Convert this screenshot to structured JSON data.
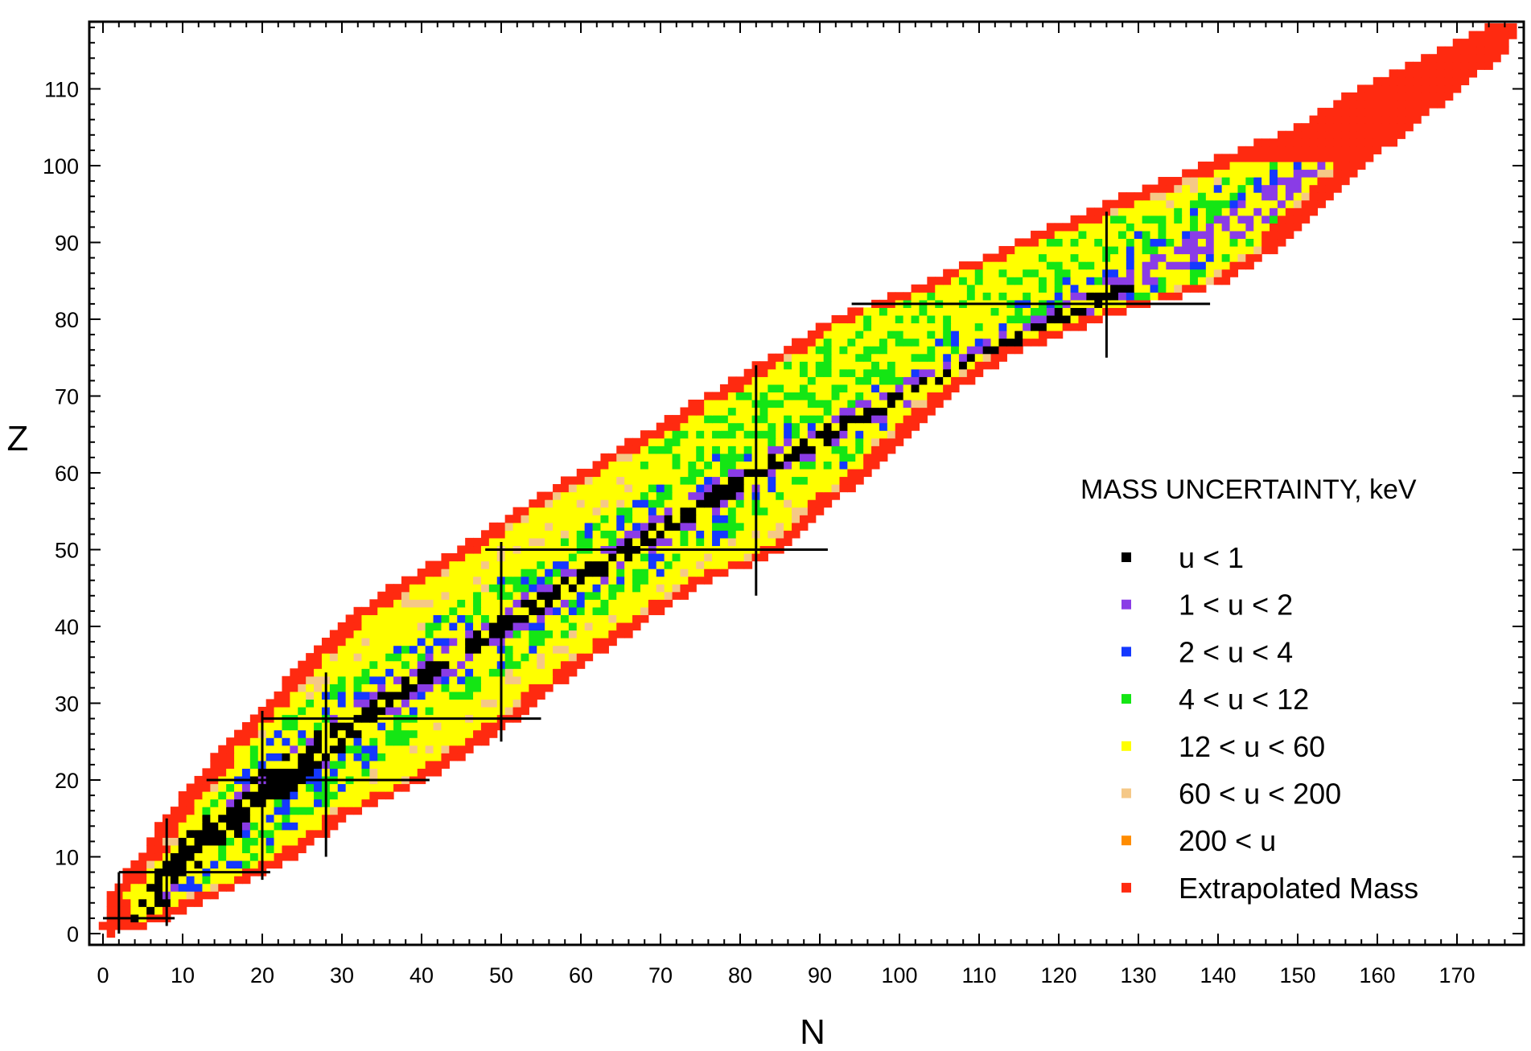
{
  "chart_data": {
    "type": "heatmap",
    "title": "",
    "xlabel": "N",
    "ylabel": "Z",
    "xlim": [
      -2,
      178
    ],
    "ylim": [
      -2,
      119
    ],
    "x_ticks": [
      0,
      10,
      20,
      30,
      40,
      50,
      60,
      70,
      80,
      90,
      100,
      110,
      120,
      130,
      140,
      150,
      160,
      170
    ],
    "y_ticks": [
      0,
      10,
      20,
      30,
      40,
      50,
      60,
      70,
      80,
      90,
      100,
      110
    ],
    "grid": false,
    "legend": {
      "title": "MASS UNCERTAINTY, keV",
      "placement": "right",
      "entries": [
        {
          "label": "u < 1",
          "color": "#000000"
        },
        {
          "label": "1 < u < 2",
          "color": "#8a3ce6"
        },
        {
          "label": "2 < u < 4",
          "color": "#1438ff"
        },
        {
          "label": "4 < u < 12",
          "color": "#14e614"
        },
        {
          "label": "12 < u < 60",
          "color": "#ffff00"
        },
        {
          "label": "60 < u < 200",
          "color": "#f5c887"
        },
        {
          "label": "200 < u",
          "color": "#ff8c00"
        },
        {
          "label": "Extrapolated Mass",
          "color": "#ff2a10"
        }
      ]
    },
    "magic_numbers": [
      2,
      8,
      20,
      28,
      50,
      82,
      126
    ],
    "magic_lines": [
      {
        "axis": "N",
        "value": 2,
        "range": [
          0,
          8
        ]
      },
      {
        "axis": "N",
        "value": 8,
        "range": [
          1,
          15
        ]
      },
      {
        "axis": "N",
        "value": 20,
        "range": [
          7,
          29
        ]
      },
      {
        "axis": "N",
        "value": 28,
        "range": [
          10,
          34
        ]
      },
      {
        "axis": "N",
        "value": 50,
        "range": [
          25,
          51
        ]
      },
      {
        "axis": "N",
        "value": 82,
        "range": [
          44,
          74
        ]
      },
      {
        "axis": "N",
        "value": 126,
        "range": [
          75,
          94
        ]
      },
      {
        "axis": "Z",
        "value": 2,
        "range": [
          0,
          9
        ]
      },
      {
        "axis": "Z",
        "value": 8,
        "range": [
          2,
          21
        ]
      },
      {
        "axis": "Z",
        "value": 20,
        "range": [
          13,
          41
        ]
      },
      {
        "axis": "Z",
        "value": 28,
        "range": [
          20,
          55
        ]
      },
      {
        "axis": "Z",
        "value": 50,
        "range": [
          48,
          91
        ]
      },
      {
        "axis": "Z",
        "value": 82,
        "range": [
          94,
          139
        ]
      }
    ],
    "nuclide_band": {
      "description": "Known and extrapolated nuclides; each cell colored by mass uncertainty class",
      "rows": [
        {
          "Z": 0,
          "N_min": 1,
          "N_max": 1
        },
        {
          "Z": 1,
          "N_min": 0,
          "N_max": 5
        },
        {
          "Z": 2,
          "N_min": 1,
          "N_max": 8
        },
        {
          "Z": 5,
          "N_min": 1,
          "N_max": 14
        },
        {
          "Z": 10,
          "N_min": 5,
          "N_max": 24
        },
        {
          "Z": 15,
          "N_min": 8,
          "N_max": 30
        },
        {
          "Z": 20,
          "N_min": 12,
          "N_max": 40
        },
        {
          "Z": 25,
          "N_min": 16,
          "N_max": 48
        },
        {
          "Z": 30,
          "N_min": 21,
          "N_max": 54
        },
        {
          "Z": 35,
          "N_min": 25,
          "N_max": 60
        },
        {
          "Z": 40,
          "N_min": 30,
          "N_max": 67
        },
        {
          "Z": 45,
          "N_min": 36,
          "N_max": 74
        },
        {
          "Z": 50,
          "N_min": 45,
          "N_max": 85
        },
        {
          "Z": 55,
          "N_min": 52,
          "N_max": 90
        },
        {
          "Z": 60,
          "N_min": 60,
          "N_max": 96
        },
        {
          "Z": 65,
          "N_min": 68,
          "N_max": 101
        },
        {
          "Z": 70,
          "N_min": 76,
          "N_max": 106
        },
        {
          "Z": 75,
          "N_min": 84,
          "N_max": 113
        },
        {
          "Z": 80,
          "N_min": 92,
          "N_max": 125
        },
        {
          "Z": 85,
          "N_min": 104,
          "N_max": 141
        },
        {
          "Z": 90,
          "N_min": 115,
          "N_max": 148
        },
        {
          "Z": 95,
          "N_min": 126,
          "N_max": 153
        },
        {
          "Z": 100,
          "N_min": 138,
          "N_max": 158
        },
        {
          "Z": 105,
          "N_min": 150,
          "N_max": 164
        },
        {
          "Z": 110,
          "N_min": 158,
          "N_max": 170
        },
        {
          "Z": 115,
          "N_min": 168,
          "N_max": 176
        },
        {
          "Z": 118,
          "N_min": 174,
          "N_max": 177
        }
      ],
      "valley_N_at_Z": [
        {
          "Z": 0,
          "N": 1
        },
        {
          "Z": 10,
          "N": 10
        },
        {
          "Z": 20,
          "N": 22
        },
        {
          "Z": 30,
          "N": 35
        },
        {
          "Z": 40,
          "N": 50
        },
        {
          "Z": 50,
          "N": 66
        },
        {
          "Z": 60,
          "N": 82
        },
        {
          "Z": 70,
          "N": 100
        },
        {
          "Z": 80,
          "N": 120
        },
        {
          "Z": 90,
          "N": 138
        },
        {
          "Z": 100,
          "N": 154
        },
        {
          "Z": 110,
          "N": 164
        },
        {
          "Z": 118,
          "N": 176
        }
      ]
    }
  }
}
